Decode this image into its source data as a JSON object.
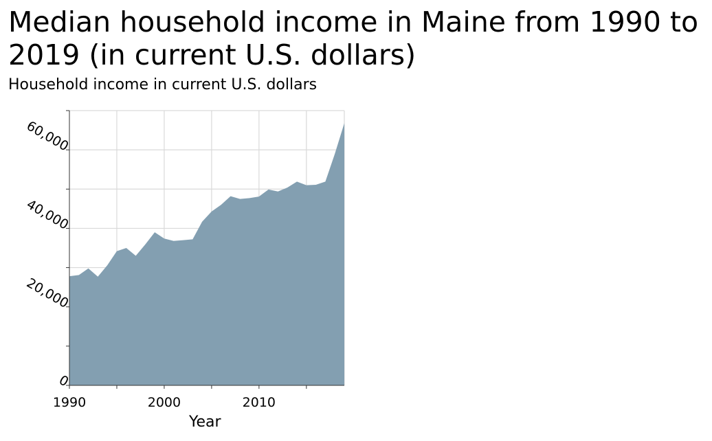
{
  "title": "Median household income in Maine from 1990 to 2019 (in current U.S. dollars)",
  "colors": {
    "area": "#839fb1",
    "grid": "#d9d9d9",
    "axis": "#333333"
  },
  "chart_data": {
    "type": "area",
    "title": "Median household income in Maine from 1990 to 2019 (in current U.S. dollars)",
    "xlabel": "Year",
    "ylabel": "Household income in current U.S. dollars",
    "xlim": [
      1990,
      2019
    ],
    "ylim": [
      0,
      70000
    ],
    "grid": true,
    "x_ticks": [
      1990,
      2000,
      2010
    ],
    "x_tick_labels": [
      "1990",
      "2000",
      "2010"
    ],
    "y_ticks": [
      0,
      20000,
      40000,
      60000
    ],
    "y_tick_labels": [
      "0",
      "20,000",
      "40,000",
      "60,000"
    ],
    "x": [
      1990,
      1991,
      1992,
      1993,
      1994,
      1995,
      1996,
      1997,
      1998,
      1999,
      2000,
      2001,
      2002,
      2003,
      2004,
      2005,
      2006,
      2007,
      2008,
      2009,
      2010,
      2011,
      2012,
      2013,
      2014,
      2015,
      2016,
      2017,
      2018,
      2019
    ],
    "values": [
      27800,
      28100,
      29800,
      27700,
      30600,
      34200,
      35000,
      33000,
      35900,
      39000,
      37400,
      36800,
      37000,
      37200,
      41700,
      44300,
      46000,
      48200,
      47500,
      47700,
      48100,
      49900,
      49400,
      50400,
      51900,
      51000,
      51100,
      51900,
      59000,
      66800
    ]
  }
}
